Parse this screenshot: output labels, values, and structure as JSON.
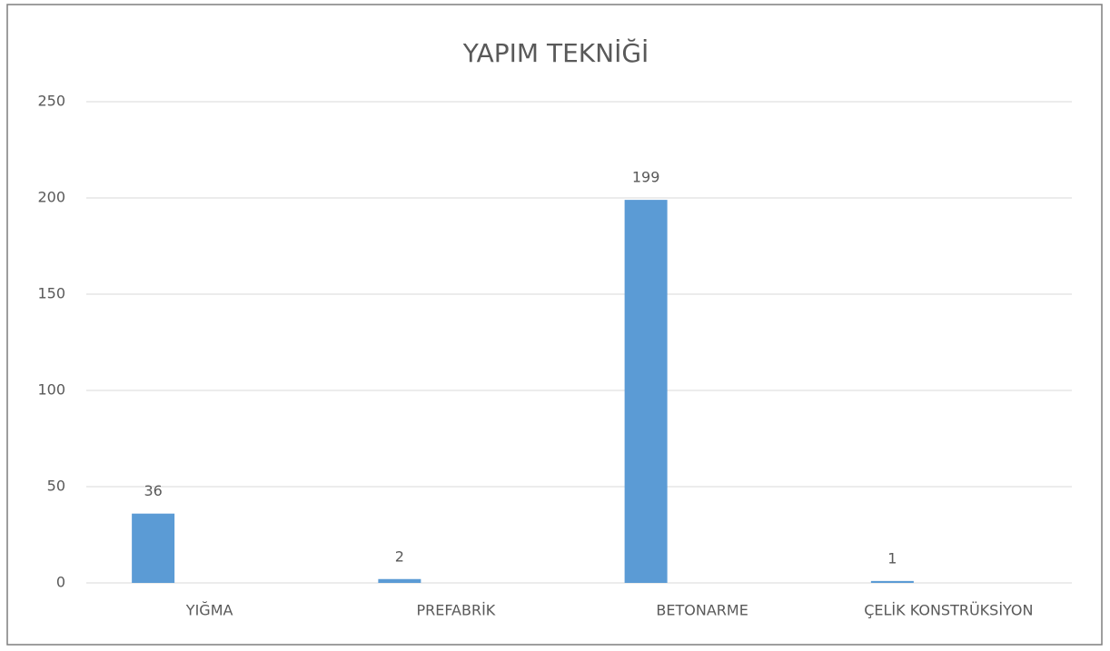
{
  "chart_data": {
    "type": "bar",
    "title": "YAPIM TEKNİĞİ",
    "categories": [
      "YIĞMA",
      "PREFABRİK",
      "BETONARME",
      "ÇELİK KONSTRÜKSİYON"
    ],
    "values": [
      36,
      2,
      199,
      1
    ],
    "color": "#5b9bd5",
    "ylim": [
      0,
      250
    ],
    "yticks": [
      0,
      50,
      100,
      150,
      200,
      250
    ],
    "grid": true
  }
}
